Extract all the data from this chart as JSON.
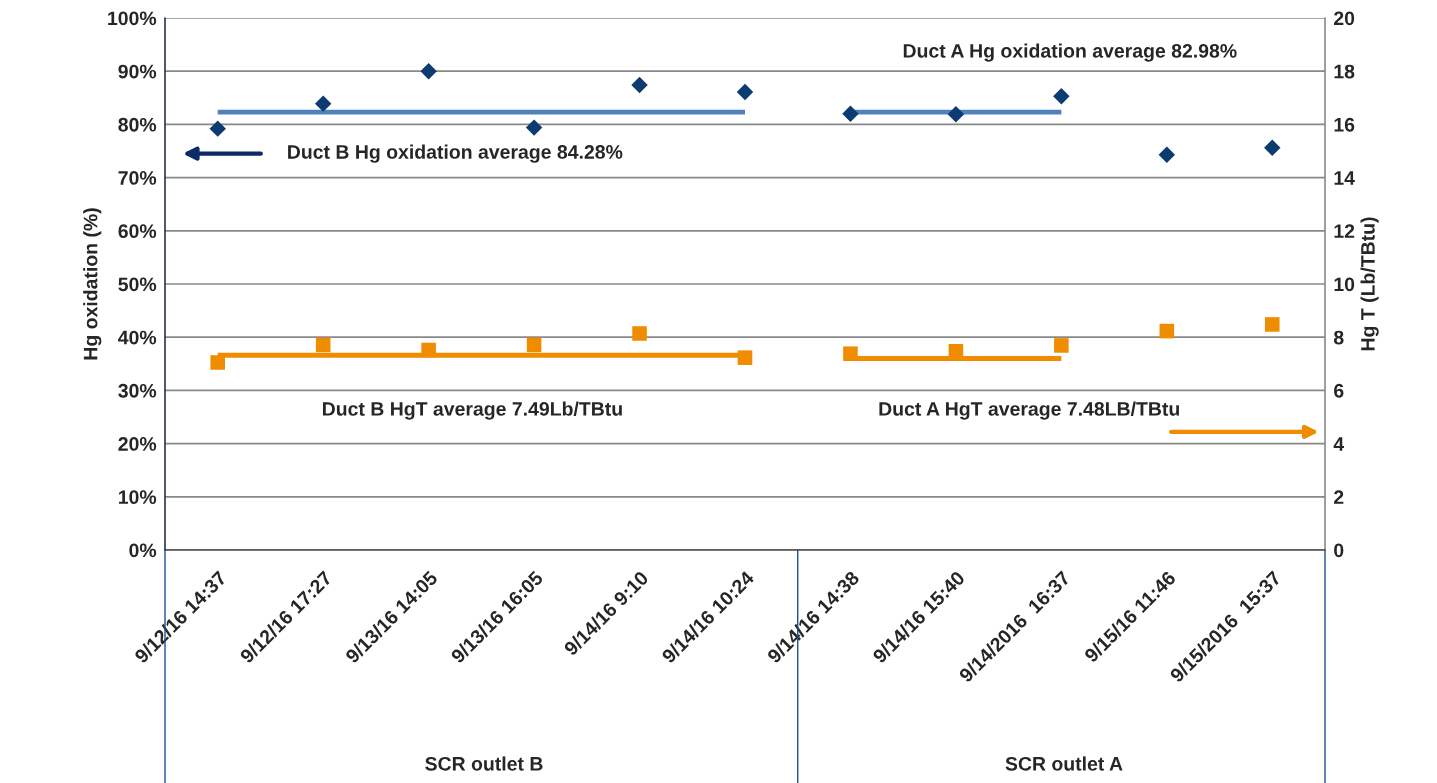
{
  "chart_data": {
    "type": "scatter",
    "categories": [
      "9/12/16 14:37",
      "9/12/16 17:27",
      "9/13/16 14:05",
      "9/13/16 16:05",
      "9/14/16 9:10",
      "9/14/16 10:24",
      "9/14/16 14:38",
      "9/14/16 15:40",
      "9/14/2016  16:37",
      "9/15/16 11:46",
      "9/15/2016  15:37"
    ],
    "series": [
      {
        "color": "#0b3b70",
        "marker": "diamond",
        "values": [
          79.2,
          83.9,
          90.0,
          79.4,
          87.4,
          86.1,
          82.0,
          81.9,
          85.3,
          74.3,
          75.6
        ]
      },
      {
        "axis": "y2",
        "color": "#f08c00",
        "marker": "square",
        "values": [
          7.05,
          7.71,
          7.52,
          7.71,
          8.14,
          7.23,
          7.38,
          7.47,
          7.69,
          8.23,
          8.48
        ]
      },
      {
        "type": "line",
        "color": "#4f81bd",
        "values": [
          82.3,
          82.3,
          82.3,
          82.3,
          82.3,
          82.3,
          null,
          null,
          null,
          null,
          null
        ]
      },
      {
        "type": "line",
        "color": "#4f81bd",
        "values": [
          null,
          null,
          null,
          null,
          null,
          null,
          82.3,
          82.3,
          82.3,
          null,
          null
        ]
      },
      {
        "type": "line",
        "axis": "y2",
        "color": "#f08c00",
        "values": [
          7.32,
          7.32,
          7.32,
          7.32,
          7.32,
          7.32,
          null,
          null,
          null,
          null,
          null
        ]
      },
      {
        "type": "line",
        "axis": "y2",
        "color": "#f08c00",
        "values": [
          null,
          null,
          null,
          null,
          null,
          null,
          7.2,
          7.2,
          7.2,
          null,
          null
        ]
      }
    ],
    "ylabel": "Hg oxidation (%)",
    "y2label": "Hg T (Lb/TBtu)",
    "ylim": [
      0,
      100
    ],
    "yticks": [
      {
        "value": 0,
        "label": "0%"
      },
      {
        "value": 10,
        "label": "10%"
      },
      {
        "value": 20,
        "label": "20%"
      },
      {
        "value": 30,
        "label": "30%"
      },
      {
        "value": 40,
        "label": "40%"
      },
      {
        "value": 50,
        "label": "50%"
      },
      {
        "value": 60,
        "label": "60%"
      },
      {
        "value": 70,
        "label": "70%"
      },
      {
        "value": 80,
        "label": "80%"
      },
      {
        "value": 90,
        "label": "90%"
      },
      {
        "value": 100,
        "label": "100%"
      }
    ],
    "y2lim": [
      0,
      20
    ],
    "y2ticks": [
      0,
      2,
      4,
      6,
      8,
      10,
      12,
      14,
      16,
      18,
      20
    ],
    "grid": "y",
    "legend": false,
    "annotations": [
      "Duct B Hg oxidation average 84.28%",
      "Duct A Hg oxidation average 82.98%",
      "Duct B HgT average 7.49Lb/TBtu",
      "Duct A HgT average 7.48LB/TBtu",
      "SCR outlet B",
      "SCR outlet A"
    ]
  }
}
